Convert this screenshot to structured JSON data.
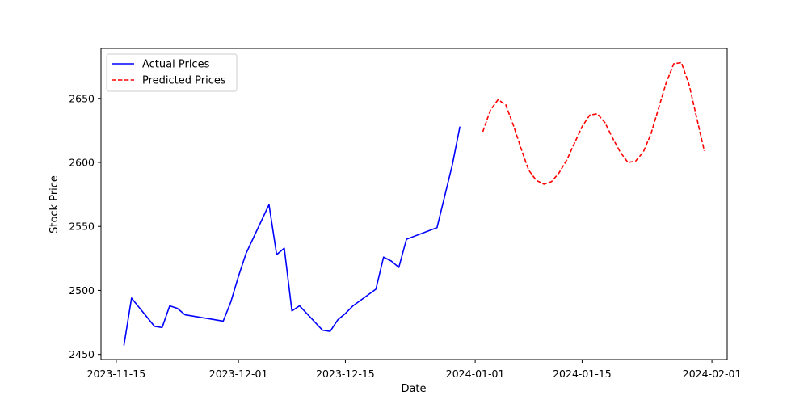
{
  "chart_data": {
    "type": "line",
    "title": "",
    "xlabel": "Date",
    "ylabel": "Stock Price",
    "x_type": "date",
    "xlim": [
      "2023-11-13",
      "2024-02-03"
    ],
    "ylim": [
      2446,
      2689
    ],
    "x_ticks": [
      {
        "value": "2023-11-15",
        "label": "2023-11-15"
      },
      {
        "value": "2023-12-01",
        "label": "2023-12-01"
      },
      {
        "value": "2023-12-15",
        "label": "2023-12-15"
      },
      {
        "value": "2024-01-01",
        "label": "2024-01-01"
      },
      {
        "value": "2024-01-15",
        "label": "2024-01-15"
      },
      {
        "value": "2024-02-01",
        "label": "2024-02-01"
      }
    ],
    "y_ticks": [
      2450,
      2500,
      2550,
      2600,
      2650
    ],
    "grid": false,
    "legend_position": "upper left",
    "series": [
      {
        "name": "Actual Prices",
        "color": "#0000ff",
        "style": "solid",
        "points": [
          {
            "x": "2023-11-16",
            "y": 2457
          },
          {
            "x": "2023-11-17",
            "y": 2494
          },
          {
            "x": "2023-11-20",
            "y": 2472
          },
          {
            "x": "2023-11-21",
            "y": 2471
          },
          {
            "x": "2023-11-22",
            "y": 2488
          },
          {
            "x": "2023-11-23",
            "y": 2486
          },
          {
            "x": "2023-11-24",
            "y": 2481
          },
          {
            "x": "2023-11-29",
            "y": 2476
          },
          {
            "x": "2023-11-30",
            "y": 2491
          },
          {
            "x": "2023-12-01",
            "y": 2511
          },
          {
            "x": "2023-12-02",
            "y": 2529
          },
          {
            "x": "2023-12-05",
            "y": 2567
          },
          {
            "x": "2023-12-06",
            "y": 2528
          },
          {
            "x": "2023-12-07",
            "y": 2533
          },
          {
            "x": "2023-12-08",
            "y": 2484
          },
          {
            "x": "2023-12-09",
            "y": 2488
          },
          {
            "x": "2023-12-12",
            "y": 2469
          },
          {
            "x": "2023-12-13",
            "y": 2468
          },
          {
            "x": "2023-12-14",
            "y": 2477
          },
          {
            "x": "2023-12-15",
            "y": 2482
          },
          {
            "x": "2023-12-16",
            "y": 2488
          },
          {
            "x": "2023-12-19",
            "y": 2501
          },
          {
            "x": "2023-12-20",
            "y": 2526
          },
          {
            "x": "2023-12-21",
            "y": 2523
          },
          {
            "x": "2023-12-22",
            "y": 2518
          },
          {
            "x": "2023-12-23",
            "y": 2540
          },
          {
            "x": "2023-12-27",
            "y": 2549
          },
          {
            "x": "2023-12-29",
            "y": 2598
          },
          {
            "x": "2023-12-30",
            "y": 2628
          }
        ]
      },
      {
        "name": "Predicted Prices",
        "color": "#ff0000",
        "style": "dashed",
        "points": [
          {
            "x": "2024-01-02",
            "y": 2624
          },
          {
            "x": "2024-01-03",
            "y": 2641
          },
          {
            "x": "2024-01-04",
            "y": 2649
          },
          {
            "x": "2024-01-05",
            "y": 2645
          },
          {
            "x": "2024-01-06",
            "y": 2629
          },
          {
            "x": "2024-01-07",
            "y": 2611
          },
          {
            "x": "2024-01-08",
            "y": 2594
          },
          {
            "x": "2024-01-09",
            "y": 2586
          },
          {
            "x": "2024-01-10",
            "y": 2583
          },
          {
            "x": "2024-01-11",
            "y": 2585
          },
          {
            "x": "2024-01-12",
            "y": 2592
          },
          {
            "x": "2024-01-13",
            "y": 2602
          },
          {
            "x": "2024-01-14",
            "y": 2615
          },
          {
            "x": "2024-01-15",
            "y": 2628
          },
          {
            "x": "2024-01-16",
            "y": 2637
          },
          {
            "x": "2024-01-17",
            "y": 2638
          },
          {
            "x": "2024-01-18",
            "y": 2631
          },
          {
            "x": "2024-01-19",
            "y": 2619
          },
          {
            "x": "2024-01-20",
            "y": 2608
          },
          {
            "x": "2024-01-21",
            "y": 2600
          },
          {
            "x": "2024-01-22",
            "y": 2601
          },
          {
            "x": "2024-01-23",
            "y": 2608
          },
          {
            "x": "2024-01-24",
            "y": 2622
          },
          {
            "x": "2024-01-25",
            "y": 2642
          },
          {
            "x": "2024-01-26",
            "y": 2662
          },
          {
            "x": "2024-01-27",
            "y": 2677
          },
          {
            "x": "2024-01-28",
            "y": 2678
          },
          {
            "x": "2024-01-29",
            "y": 2661
          },
          {
            "x": "2024-01-30",
            "y": 2635
          },
          {
            "x": "2024-01-31",
            "y": 2609
          }
        ]
      }
    ]
  }
}
